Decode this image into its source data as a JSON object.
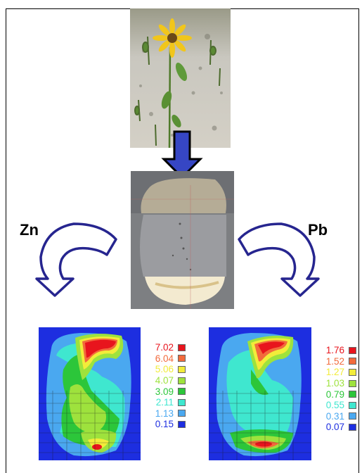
{
  "labels": {
    "left_element": "Zn",
    "right_element": "Pb"
  },
  "legend_zn": {
    "values": [
      "7.02",
      "6.04",
      "5.06",
      "4.07",
      "3.09",
      "2.11",
      "1.13",
      "0.15"
    ],
    "colors": [
      "#e8141d",
      "#f26a3c",
      "#f2ec3a",
      "#9ee23d",
      "#2cc63a",
      "#3fe7cf",
      "#4aa8f0",
      "#1d2ee0"
    ]
  },
  "legend_pb": {
    "values": [
      "1.76",
      "1.52",
      "1.27",
      "1.03",
      "0.79",
      "0.55",
      "0.31",
      "0.07"
    ],
    "colors": [
      "#e8141d",
      "#f26a3c",
      "#f2ec3a",
      "#9ee23d",
      "#2cc63a",
      "#3fe7cf",
      "#4aa8f0",
      "#1d2ee0"
    ]
  },
  "colors": {
    "arrow_fill": "#ffffff",
    "arrow_stroke": "#26258f",
    "down_arrow_fill": "#3646c4",
    "down_arrow_stroke": "#000000"
  },
  "icons": {
    "down_arrow": "block-arrow-down-icon",
    "curved_left": "curved-arrow-left-icon",
    "curved_right": "curved-arrow-right-icon"
  }
}
